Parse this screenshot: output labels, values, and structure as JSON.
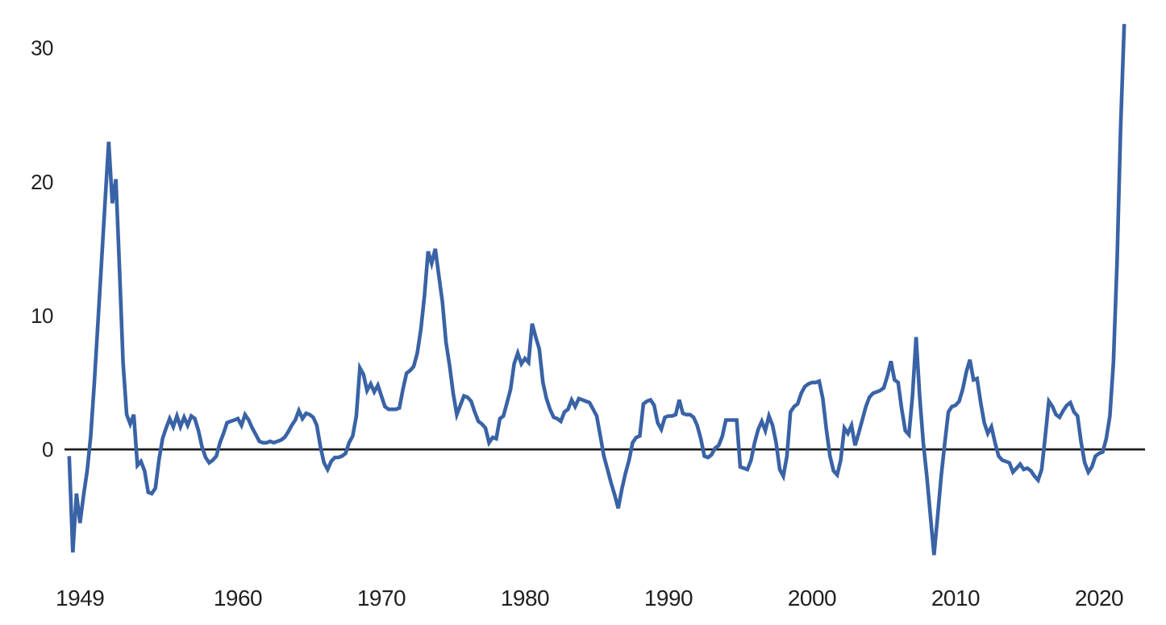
{
  "page": {
    "background_color": "#ffffff",
    "title": ""
  },
  "chart_data": {
    "type": "line",
    "title": "",
    "subtitle": "",
    "xlabel": "",
    "ylabel": "",
    "legend": null,
    "grid": false,
    "zero_baseline": true,
    "x_unit": "year (quarterly steps)",
    "x_start": 1948.25,
    "x_step": 0.25,
    "xlim": [
      1947.9,
      2023.1
    ],
    "ylim": [
      -9,
      32
    ],
    "x_ticks": [
      1949,
      1960,
      1970,
      1980,
      1990,
      2000,
      2010,
      2020
    ],
    "y_ticks": [
      0,
      10,
      20,
      30
    ],
    "colors": {
      "line": "#3a63a6",
      "zero_line": "#1d1d1d",
      "tick_text": "#231f20",
      "background": "#ffffff"
    },
    "series": [
      {
        "name": "quarterly-growth-series",
        "color": "#3a63a6",
        "values": [
          -0.5,
          -7.7,
          -3.3,
          -5.5,
          -3.4,
          -1.6,
          1.0,
          5.0,
          9.5,
          14.0,
          18.5,
          23.0,
          18.4,
          20.2,
          13.5,
          6.5,
          2.6,
          1.9,
          2.6,
          -1.2,
          -0.9,
          -1.6,
          -3.2,
          -3.3,
          -2.9,
          -0.8,
          0.8,
          1.6,
          2.3,
          1.7,
          2.5,
          1.7,
          2.4,
          1.8,
          2.5,
          2.3,
          1.4,
          0.2,
          -0.6,
          -1.0,
          -0.8,
          -0.5,
          0.5,
          1.2,
          2.0,
          2.1,
          2.2,
          2.3,
          1.8,
          2.6,
          2.2,
          1.6,
          1.1,
          0.6,
          0.5,
          0.5,
          0.6,
          0.5,
          0.6,
          0.7,
          0.9,
          1.3,
          1.8,
          2.2,
          2.9,
          2.3,
          2.7,
          2.6,
          2.4,
          1.8,
          0.2,
          -1.0,
          -1.5,
          -0.9,
          -0.6,
          -0.6,
          -0.5,
          -0.3,
          0.5,
          1.0,
          2.5,
          6.1,
          5.6,
          4.4,
          4.9,
          4.3,
          4.8,
          4.0,
          3.2,
          3.0,
          3.0,
          3.0,
          3.1,
          4.5,
          5.7,
          5.9,
          6.2,
          7.2,
          9.0,
          11.5,
          14.8,
          13.9,
          15.0,
          13.0,
          11.0,
          8.0,
          6.3,
          4.2,
          2.6,
          3.3,
          4.0,
          3.9,
          3.6,
          2.8,
          2.1,
          1.9,
          1.6,
          0.5,
          0.9,
          0.8,
          2.3,
          2.5,
          3.5,
          4.5,
          6.4,
          7.2,
          6.4,
          6.8,
          6.5,
          9.4,
          8.4,
          7.5,
          5.0,
          3.8,
          3.0,
          2.4,
          2.3,
          2.1,
          2.8,
          3.0,
          3.7,
          3.2,
          3.8,
          3.7,
          3.6,
          3.5,
          3.0,
          2.5,
          1.0,
          -0.5,
          -1.5,
          -2.5,
          -3.4,
          -4.4,
          -3.0,
          -1.8,
          -0.8,
          0.5,
          0.9,
          1.0,
          3.4,
          3.6,
          3.7,
          3.3,
          2.0,
          1.5,
          2.4,
          2.5,
          2.5,
          2.6,
          3.7,
          2.7,
          2.6,
          2.6,
          2.4,
          1.8,
          0.8,
          -0.5,
          -0.6,
          -0.4,
          0.1,
          0.3,
          1.0,
          2.2,
          2.2,
          2.2,
          2.2,
          -1.3,
          -1.4,
          -1.5,
          -0.8,
          0.5,
          1.5,
          2.1,
          1.4,
          2.5,
          1.8,
          0.5,
          -1.5,
          -2.0,
          -0.5,
          2.8,
          3.2,
          3.4,
          4.2,
          4.7,
          4.9,
          5.0,
          5.0,
          5.1,
          3.8,
          1.5,
          -0.5,
          -1.6,
          -1.9,
          -0.8,
          1.6,
          1.2,
          1.8,
          0.3,
          1.2,
          2.2,
          3.2,
          3.9,
          4.2,
          4.3,
          4.4,
          4.6,
          5.5,
          6.6,
          5.2,
          5.0,
          3.0,
          1.4,
          1.1,
          4.0,
          8.4,
          4.0,
          0.5,
          -2.0,
          -5.0,
          -7.9,
          -5.0,
          -2.0,
          0.5,
          2.8,
          3.2,
          3.3,
          3.6,
          4.5,
          5.8,
          6.7,
          5.2,
          5.3,
          3.5,
          2.0,
          1.2,
          1.7,
          0.5,
          -0.5,
          -0.8,
          -0.9,
          -1.0,
          -1.7,
          -1.4,
          -1.1,
          -1.5,
          -1.4,
          -1.6,
          -2.0,
          -2.3,
          -1.5,
          1.0,
          3.6,
          3.2,
          2.6,
          2.4,
          2.9,
          3.3,
          3.5,
          2.8,
          2.5,
          0.5,
          -1.0,
          -1.7,
          -1.3,
          -0.5,
          -0.3,
          -0.2,
          0.8,
          2.5,
          6.5,
          14.0,
          24.0,
          31.8
        ]
      }
    ]
  }
}
